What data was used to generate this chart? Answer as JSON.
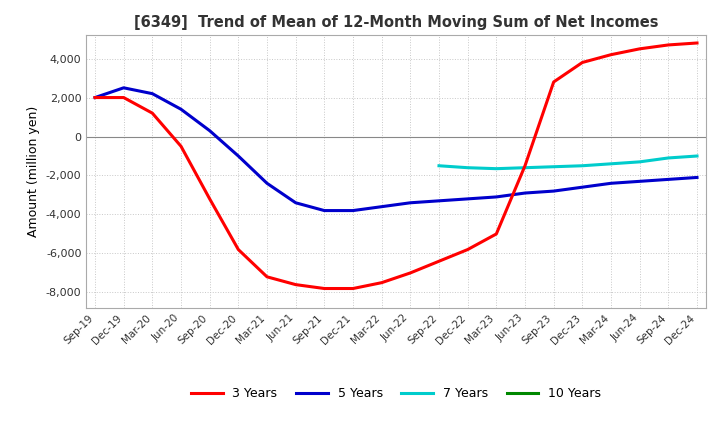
{
  "title": "[6349]  Trend of Mean of 12-Month Moving Sum of Net Incomes",
  "ylabel": "Amount (million yen)",
  "ylim": [
    -8800,
    5200
  ],
  "yticks": [
    -8000,
    -6000,
    -4000,
    -2000,
    0,
    2000,
    4000
  ],
  "background_color": "#ffffff",
  "grid_color": "#c8c8c8",
  "legend": [
    "3 Years",
    "5 Years",
    "7 Years",
    "10 Years"
  ],
  "line_colors": [
    "#ff0000",
    "#0000cc",
    "#00cccc",
    "#008800"
  ],
  "x_labels": [
    "Sep-19",
    "Dec-19",
    "Mar-20",
    "Jun-20",
    "Sep-20",
    "Dec-20",
    "Mar-21",
    "Jun-21",
    "Sep-21",
    "Dec-21",
    "Mar-22",
    "Jun-22",
    "Sep-22",
    "Dec-22",
    "Mar-23",
    "Jun-23",
    "Sep-23",
    "Dec-23",
    "Mar-24",
    "Jun-24",
    "Sep-24",
    "Dec-24"
  ],
  "series_3yr": [
    2000,
    2000,
    1200,
    -500,
    -3200,
    -5800,
    -7200,
    -7600,
    -7800,
    -7800,
    -7500,
    -7000,
    -6400,
    -5800,
    -5000,
    -1500,
    2800,
    3800,
    4200,
    4500,
    4700,
    4800
  ],
  "series_5yr": [
    2000,
    2500,
    2200,
    1400,
    300,
    -1000,
    -2400,
    -3400,
    -3800,
    -3800,
    -3600,
    -3400,
    -3300,
    -3200,
    -3100,
    -2900,
    -2800,
    -2600,
    -2400,
    -2300,
    -2200,
    -2100
  ],
  "series_7yr": [
    null,
    null,
    null,
    null,
    null,
    null,
    null,
    null,
    null,
    null,
    null,
    null,
    -1500,
    -1600,
    -1650,
    -1600,
    -1550,
    -1500,
    -1400,
    -1300,
    -1100,
    -1000
  ],
  "series_10yr": [
    null,
    null,
    null,
    null,
    null,
    null,
    null,
    null,
    null,
    null,
    null,
    null,
    null,
    null,
    null,
    null,
    null,
    null,
    null,
    null,
    null,
    null
  ]
}
